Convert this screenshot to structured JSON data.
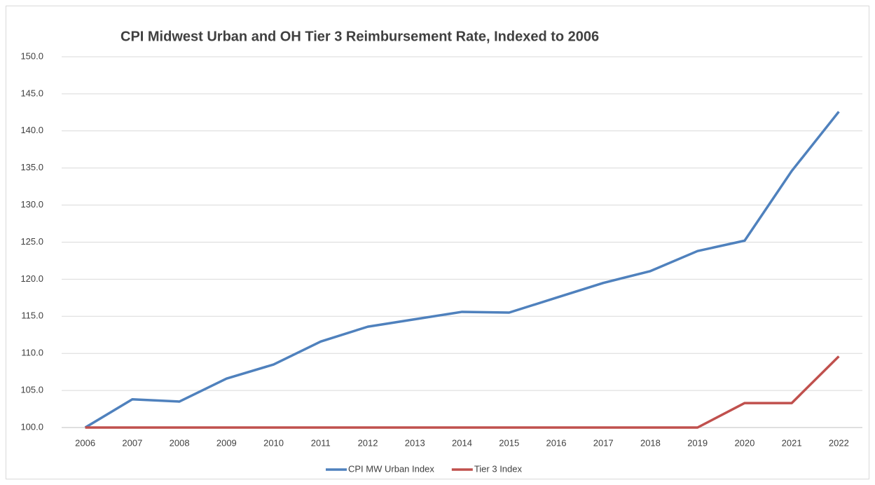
{
  "chart_data": {
    "type": "line",
    "title": "CPI Midwest Urban and OH Tier 3 Reimbursement Rate, Indexed to 2006",
    "categories": [
      "2006",
      "2007",
      "2008",
      "2009",
      "2010",
      "2011",
      "2012",
      "2013",
      "2014",
      "2015",
      "2016",
      "2017",
      "2018",
      "2019",
      "2020",
      "2021",
      "2022"
    ],
    "series": [
      {
        "name": "CPI MW Urban Index",
        "color": "#4f81bd",
        "values": [
          100,
          103.8,
          103.5,
          106.6,
          108.5,
          111.6,
          113.6,
          114.6,
          115.6,
          115.5,
          117.5,
          119.5,
          121.1,
          123.8,
          125.2,
          134.6,
          142.6
        ]
      },
      {
        "name": "Tier 3 Index",
        "color": "#c0504d",
        "values": [
          100,
          100,
          100,
          100,
          100,
          100,
          100,
          100,
          100,
          100,
          100,
          100,
          100,
          100,
          103.3,
          103.3,
          109.6
        ]
      }
    ],
    "ylim": [
      100,
      150
    ],
    "yticks": [
      {
        "value": 100,
        "label": "100.0"
      },
      {
        "value": 105,
        "label": "105.0"
      },
      {
        "value": 110,
        "label": "110.0"
      },
      {
        "value": 115,
        "label": "115.0"
      },
      {
        "value": 120,
        "label": "120.0"
      },
      {
        "value": 125,
        "label": "125.0"
      },
      {
        "value": 130,
        "label": "130.0"
      },
      {
        "value": 135,
        "label": "135.0"
      },
      {
        "value": 140,
        "label": "140.0"
      },
      {
        "value": 145,
        "label": "145.0"
      },
      {
        "value": 150,
        "label": "150.0"
      }
    ],
    "grid": true,
    "legend": "bottom"
  }
}
